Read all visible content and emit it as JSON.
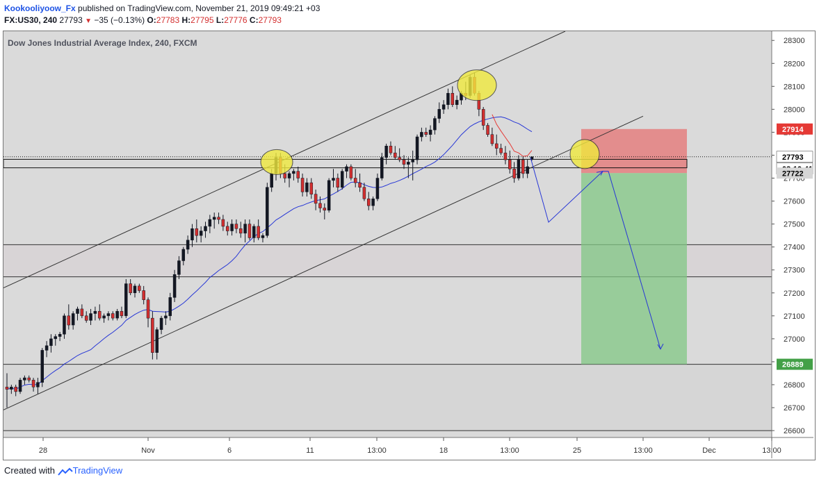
{
  "header": {
    "author": "Kookooliyoow_Fx",
    "published_text": "published on TradingView.com, November 21, 2019 09:49:21 +03",
    "symbol": "FX:US30, 240",
    "last": "27793",
    "change_arrow": "▼",
    "change": "−35 (−0.13%)",
    "o_label": "O:",
    "o_value": "27783",
    "h_label": "H:",
    "h_value": "27795",
    "l_label": "L:",
    "l_value": "27776",
    "c_label": "C:",
    "c_value": "27793"
  },
  "footer": {
    "created_with": "Created with",
    "brand": "TradingView"
  },
  "colors": {
    "up_candle": "#131722",
    "down_candle": "#d32f2f",
    "ma_line": "#2636d6",
    "ma_short": "#e53935",
    "stop_zone": "#e57373",
    "target_zone": "#81c784",
    "highlight": "#f0e93e",
    "arrow": "#2636d6"
  },
  "chart_data": {
    "type": "candlestick",
    "title": "Dow Jones Industrial Average Index, 240, FXCM",
    "ylim": [
      26570,
      28340
    ],
    "y_ticks": [
      28300,
      28200,
      28100,
      28000,
      27900,
      27800,
      27700,
      27600,
      27500,
      27400,
      27300,
      27200,
      27100,
      27000,
      26900,
      26800,
      26700,
      26600
    ],
    "x_ticks": [
      "28",
      "Nov",
      "6",
      "11",
      "13:00",
      "18",
      "13:00",
      "25",
      "13:00",
      "Dec",
      "13:00"
    ],
    "price_labels": [
      {
        "text": "27914",
        "role": "stop"
      },
      {
        "text": "27793",
        "role": "last"
      },
      {
        "text": "03:10:41",
        "role": "countdown"
      },
      {
        "text": "27722",
        "role": "entry"
      },
      {
        "text": "26889",
        "role": "target"
      }
    ],
    "candles": [
      [
        26790,
        26850,
        26700,
        26780
      ],
      [
        26780,
        26800,
        26760,
        26790
      ],
      [
        26790,
        26800,
        26750,
        26770
      ],
      [
        26770,
        26830,
        26760,
        26820
      ],
      [
        26820,
        26840,
        26800,
        26830
      ],
      [
        26830,
        26840,
        26810,
        26820
      ],
      [
        26820,
        26830,
        26770,
        26790
      ],
      [
        26790,
        26830,
        26760,
        26810
      ],
      [
        26810,
        26960,
        26790,
        26950
      ],
      [
        26950,
        26990,
        26920,
        26970
      ],
      [
        26970,
        27020,
        26940,
        27000
      ],
      [
        27000,
        27020,
        26970,
        27010
      ],
      [
        27010,
        27030,
        26990,
        27020
      ],
      [
        27020,
        27110,
        27000,
        27100
      ],
      [
        27100,
        27150,
        27040,
        27060
      ],
      [
        27060,
        27120,
        27040,
        27110
      ],
      [
        27110,
        27140,
        27080,
        27130
      ],
      [
        27130,
        27150,
        27090,
        27100
      ],
      [
        27100,
        27120,
        27070,
        27080
      ],
      [
        27080,
        27130,
        27060,
        27110
      ],
      [
        27110,
        27140,
        27080,
        27120
      ],
      [
        27120,
        27150,
        27080,
        27090
      ],
      [
        27090,
        27110,
        27070,
        27100
      ],
      [
        27100,
        27120,
        27080,
        27110
      ],
      [
        27110,
        27120,
        27080,
        27090
      ],
      [
        27090,
        27130,
        27080,
        27120
      ],
      [
        27120,
        27140,
        27090,
        27100
      ],
      [
        27100,
        27260,
        27090,
        27240
      ],
      [
        27240,
        27260,
        27190,
        27200
      ],
      [
        27200,
        27240,
        27180,
        27230
      ],
      [
        27230,
        27240,
        27200,
        27210
      ],
      [
        27210,
        27230,
        27150,
        27170
      ],
      [
        27170,
        27180,
        27050,
        27090
      ],
      [
        27090,
        27120,
        26910,
        26940
      ],
      [
        26940,
        27050,
        26910,
        27040
      ],
      [
        27040,
        27100,
        27020,
        27090
      ],
      [
        27090,
        27120,
        27060,
        27100
      ],
      [
        27100,
        27200,
        27080,
        27180
      ],
      [
        27180,
        27300,
        27160,
        27280
      ],
      [
        27280,
        27360,
        27260,
        27340
      ],
      [
        27340,
        27400,
        27320,
        27390
      ],
      [
        27390,
        27450,
        27370,
        27430
      ],
      [
        27430,
        27500,
        27400,
        27480
      ],
      [
        27480,
        27520,
        27420,
        27450
      ],
      [
        27450,
        27490,
        27420,
        27470
      ],
      [
        27470,
        27510,
        27440,
        27490
      ],
      [
        27490,
        27540,
        27460,
        27520
      ],
      [
        27520,
        27550,
        27480,
        27530
      ],
      [
        27530,
        27550,
        27500,
        27520
      ],
      [
        27520,
        27540,
        27470,
        27490
      ],
      [
        27490,
        27510,
        27450,
        27470
      ],
      [
        27470,
        27520,
        27450,
        27500
      ],
      [
        27500,
        27520,
        27460,
        27480
      ],
      [
        27480,
        27510,
        27440,
        27460
      ],
      [
        27460,
        27520,
        27420,
        27500
      ],
      [
        27500,
        27520,
        27430,
        27440
      ],
      [
        27440,
        27500,
        27420,
        27490
      ],
      [
        27490,
        27520,
        27430,
        27440
      ],
      [
        27440,
        27460,
        27420,
        27450
      ],
      [
        27450,
        27680,
        27440,
        27660
      ],
      [
        27660,
        27740,
        27640,
        27720
      ],
      [
        27720,
        27810,
        27690,
        27790
      ],
      [
        27790,
        27810,
        27700,
        27720
      ],
      [
        27720,
        27760,
        27680,
        27700
      ],
      [
        27700,
        27730,
        27660,
        27720
      ],
      [
        27720,
        27740,
        27690,
        27730
      ],
      [
        27730,
        27750,
        27680,
        27700
      ],
      [
        27700,
        27720,
        27620,
        27640
      ],
      [
        27640,
        27700,
        27620,
        27680
      ],
      [
        27680,
        27700,
        27610,
        27630
      ],
      [
        27630,
        27650,
        27560,
        27590
      ],
      [
        27590,
        27620,
        27550,
        27570
      ],
      [
        27570,
        27590,
        27520,
        27560
      ],
      [
        27560,
        27700,
        27550,
        27690
      ],
      [
        27690,
        27740,
        27660,
        27700
      ],
      [
        27700,
        27720,
        27640,
        27660
      ],
      [
        27660,
        27740,
        27650,
        27730
      ],
      [
        27730,
        27760,
        27700,
        27750
      ],
      [
        27750,
        27760,
        27690,
        27700
      ],
      [
        27700,
        27740,
        27660,
        27680
      ],
      [
        27680,
        27720,
        27640,
        27660
      ],
      [
        27660,
        27680,
        27600,
        27610
      ],
      [
        27610,
        27640,
        27560,
        27580
      ],
      [
        27580,
        27620,
        27560,
        27610
      ],
      [
        27610,
        27720,
        27600,
        27700
      ],
      [
        27700,
        27810,
        27690,
        27790
      ],
      [
        27790,
        27850,
        27760,
        27840
      ],
      [
        27840,
        27860,
        27800,
        27810
      ],
      [
        27810,
        27840,
        27780,
        27790
      ],
      [
        27790,
        27830,
        27770,
        27780
      ],
      [
        27780,
        27800,
        27740,
        27760
      ],
      [
        27760,
        27790,
        27700,
        27770
      ],
      [
        27770,
        27820,
        27690,
        27780
      ],
      [
        27780,
        27890,
        27760,
        27880
      ],
      [
        27880,
        27920,
        27860,
        27900
      ],
      [
        27900,
        27920,
        27880,
        27890
      ],
      [
        27890,
        27930,
        27860,
        27910
      ],
      [
        27910,
        27970,
        27890,
        27960
      ],
      [
        27960,
        28030,
        27940,
        28000
      ],
      [
        28000,
        28040,
        27980,
        28020
      ],
      [
        28020,
        28090,
        28000,
        28070
      ],
      [
        28070,
        28100,
        28010,
        28020
      ],
      [
        28020,
        28060,
        28000,
        28040
      ],
      [
        28040,
        28080,
        28020,
        28070
      ],
      [
        28070,
        28120,
        28040,
        28060
      ],
      [
        28060,
        28150,
        28050,
        28140
      ],
      [
        28140,
        28160,
        28060,
        28070
      ],
      [
        28070,
        28080,
        27970,
        28000
      ],
      [
        28000,
        28010,
        27910,
        27930
      ],
      [
        27930,
        27940,
        27880,
        27890
      ],
      [
        27890,
        27920,
        27840,
        27850
      ],
      [
        27850,
        27890,
        27800,
        27830
      ],
      [
        27830,
        27850,
        27800,
        27810
      ],
      [
        27810,
        27840,
        27760,
        27780
      ],
      [
        27780,
        27820,
        27720,
        27740
      ],
      [
        27740,
        27770,
        27680,
        27700
      ],
      [
        27700,
        27800,
        27690,
        27780
      ],
      [
        27780,
        27795,
        27700,
        27720
      ],
      [
        27720,
        27780,
        27700,
        27750
      ],
      [
        27783,
        27795,
        27776,
        27793
      ]
    ],
    "annotations": [
      "Ascending channel",
      "Horizontal support/resistance zones at 27400–27270 and 26889",
      "Short position: entry 27722, stop 27914, target 26889",
      "Projected path arrows"
    ]
  }
}
